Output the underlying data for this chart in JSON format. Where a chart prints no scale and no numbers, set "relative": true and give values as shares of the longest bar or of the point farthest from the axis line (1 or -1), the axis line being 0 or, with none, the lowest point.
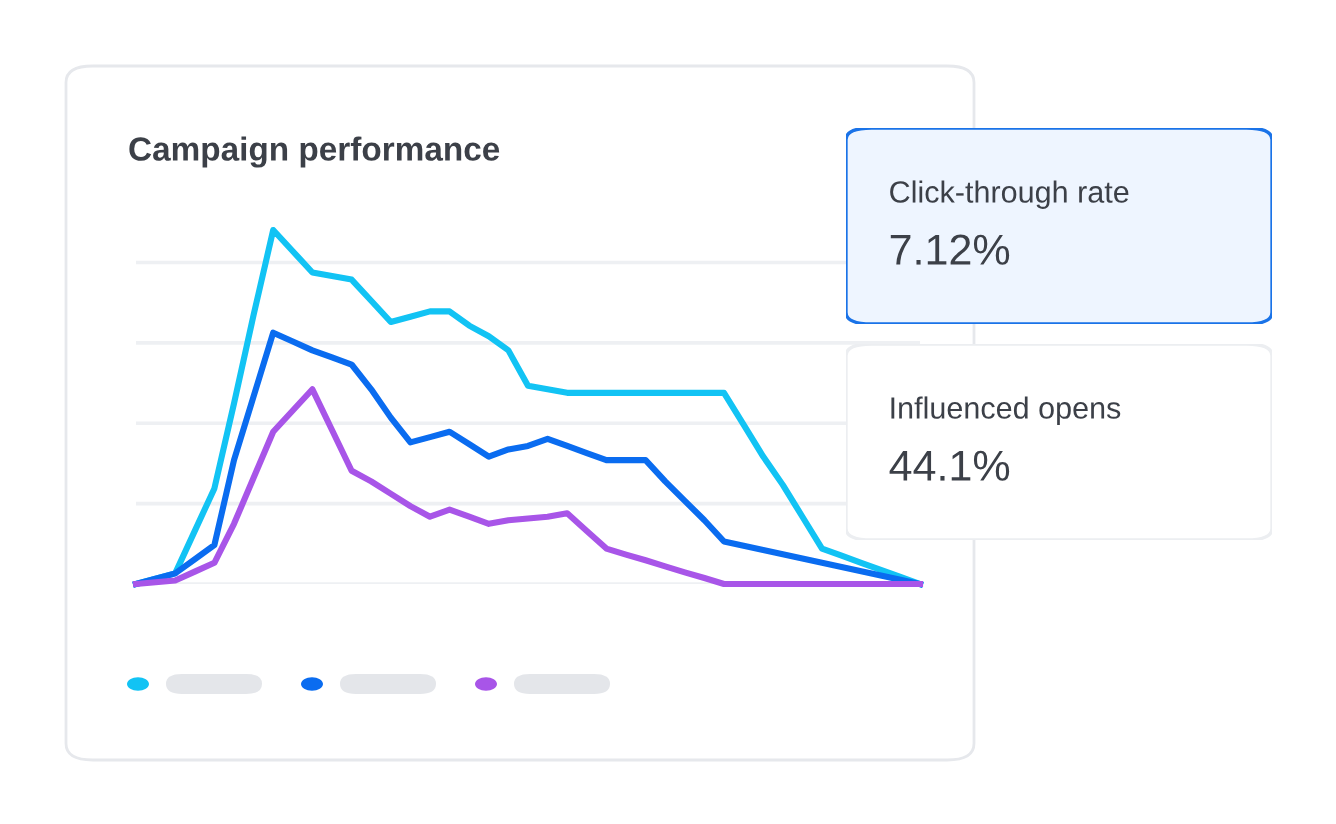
{
  "chart_data": [
    {
      "type": "line",
      "title": "Campaign performance",
      "relative": true,
      "grid": "y",
      "legend": false,
      "marker": "none",
      "line_style": "solid",
      "tick_labels": false,
      "categories": [
        null,
        null,
        null,
        null,
        null,
        null,
        null,
        null,
        null,
        null,
        null,
        null,
        null,
        null,
        null,
        null,
        null,
        null,
        null,
        null,
        null,
        null,
        null,
        null,
        null,
        null,
        null,
        null,
        null,
        null,
        null,
        null,
        null,
        null,
        null,
        null,
        null,
        null,
        null,
        null,
        null
      ],
      "series": [
        {
          "color": "#12c3f4",
          "values": [
            0,
            0.015,
            0.03,
            0.15,
            0.27,
            0.51,
            0.76,
            1,
            0.94,
            0.88,
            0.87,
            0.86,
            0.8,
            0.74,
            0.755,
            0.77,
            0.77,
            0.73,
            0.7,
            0.66,
            0.56,
            0.55,
            0.54,
            0.54,
            0.54,
            0.54,
            0.54,
            0.54,
            0.54,
            0.54,
            0.54,
            0.45,
            0.36,
            0.28,
            0.19,
            0.1,
            0.08,
            0.06,
            0.04,
            0.02,
            0
          ]
        },
        {
          "color": "#0a6cf0",
          "values": [
            0,
            0.015,
            0.03,
            0.07,
            0.11,
            0.35,
            0.53,
            0.71,
            0.685,
            0.66,
            0.64,
            0.62,
            0.55,
            0.47,
            0.4,
            0.415,
            0.43,
            0.395,
            0.36,
            0.38,
            0.39,
            0.41,
            0.39,
            0.37,
            0.35,
            0.35,
            0.35,
            0.29,
            0.235,
            0.18,
            0.12,
            0.108,
            0.096,
            0.084,
            0.072,
            0.06,
            0.048,
            0.036,
            0.024,
            0.012,
            0
          ]
        },
        {
          "color": "#a855e8",
          "values": [
            0,
            0.005,
            0.01,
            0.035,
            0.06,
            0.17,
            0.3,
            0.43,
            0.49,
            0.55,
            0.435,
            0.32,
            0.29,
            0.255,
            0.22,
            0.19,
            0.21,
            0.19,
            0.17,
            0.18,
            0.185,
            0.19,
            0.2,
            0.15,
            0.1,
            0.083,
            0.067,
            0.05,
            0.033,
            0.017,
            0,
            0,
            0,
            0,
            0,
            0,
            0,
            0,
            0,
            0,
            0
          ]
        }
      ]
    },
    {
      "type": "other",
      "title": "Click-through rate",
      "annotations": [
        "7.12%"
      ],
      "color": "#eef5ff"
    },
    {
      "type": "other",
      "title": "Influenced opens",
      "annotations": [
        "44.1%"
      ],
      "color": "#ffffff"
    }
  ]
}
